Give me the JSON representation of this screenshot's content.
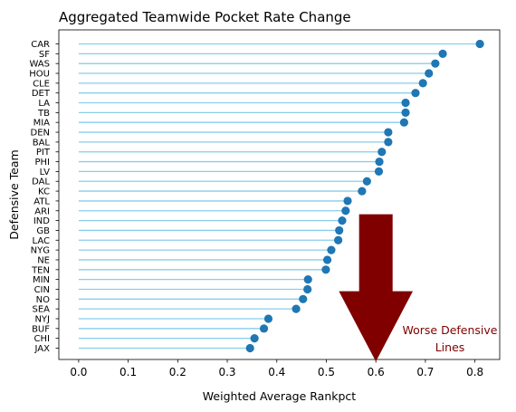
{
  "chart_data": {
    "type": "lollipop",
    "title": "Aggregated Teamwide Pocket Rate Change",
    "xlabel": "Weighted Average Rankpct",
    "ylabel": "Defensive Team",
    "xlim": [
      -0.04,
      0.85
    ],
    "xticks": [
      0.0,
      0.1,
      0.2,
      0.3,
      0.4,
      0.5,
      0.6,
      0.7,
      0.8
    ],
    "xtick_labels": [
      "0.0",
      "0.1",
      "0.2",
      "0.3",
      "0.4",
      "0.5",
      "0.6",
      "0.7",
      "0.8"
    ],
    "grid": false,
    "stem_color": "#87ceeb",
    "marker_color": "#1f77b4",
    "categories": [
      "CAR",
      "SF",
      "WAS",
      "HOU",
      "CLE",
      "DET",
      "LA",
      "TB",
      "MIA",
      "DEN",
      "BAL",
      "PIT",
      "PHI",
      "LV",
      "DAL",
      "KC",
      "ATL",
      "ARI",
      "IND",
      "GB",
      "LAC",
      "NYG",
      "NE",
      "TEN",
      "MIN",
      "CIN",
      "NO",
      "SEA",
      "NYJ",
      "BUF",
      "CHI",
      "JAX"
    ],
    "values": [
      0.81,
      0.735,
      0.72,
      0.707,
      0.695,
      0.68,
      0.66,
      0.66,
      0.657,
      0.625,
      0.625,
      0.612,
      0.607,
      0.606,
      0.582,
      0.572,
      0.543,
      0.539,
      0.532,
      0.526,
      0.524,
      0.51,
      0.502,
      0.499,
      0.463,
      0.462,
      0.453,
      0.439,
      0.383,
      0.374,
      0.355,
      0.346
    ],
    "annotation": {
      "text_lines": [
        "Worse Defensive",
        "Lines"
      ],
      "color": "#800000",
      "arrow": {
        "x": 0.6,
        "from_index": 17.5,
        "to_index": 31.8
      }
    }
  }
}
